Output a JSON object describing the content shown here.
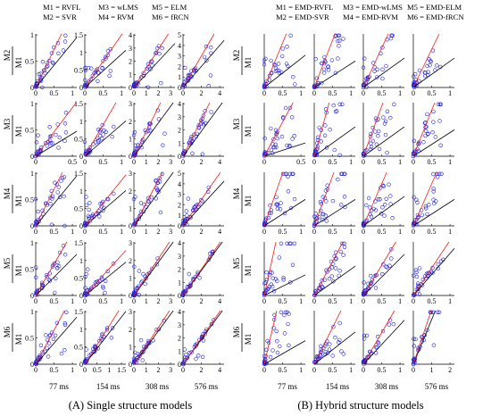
{
  "legend": {
    "single": [
      [
        "M1 = RVFL",
        "M3 = wLMS",
        "M5 = ELM"
      ],
      [
        "M2 = SVR",
        "M4 = RVM",
        "M6 = fRCN"
      ]
    ],
    "hybrid": [
      [
        "M1 = EMD-RVFL",
        "M3 = EMD-wLMS",
        "M5 = EMD-ELM"
      ],
      [
        "M2 = EMD-SVR",
        "M4 = EMD-RVM",
        "M6 = EMD-fRCN"
      ]
    ]
  },
  "row_labels": {
    "numerators": [
      "M2",
      "M3",
      "M4",
      "M5",
      "M6"
    ],
    "denominator": "M1"
  },
  "column_labels": [
    "77 ms",
    "154 ms",
    "308 ms",
    "576 ms"
  ],
  "captions": {
    "single": "(A) Single structure models",
    "hybrid": "(B) Hybrid structure models"
  },
  "colors": {
    "points": "#1f1fe0",
    "fit_line": "#ff1a1a",
    "reference_line": "#000000"
  },
  "chart_data": {
    "type": "scatter",
    "description_grid": "5 rows (M2..M6 vs M1) x 4 columns (77, 154, 308, 576 ms) for each of two model groups",
    "single": {
      "y_max": [
        [
          1,
          1.5,
          4,
          5
        ],
        [
          1,
          1.5,
          3,
          4
        ],
        [
          1,
          1.5,
          3,
          5
        ],
        [
          1,
          1.5,
          3,
          4
        ],
        [
          1,
          1.5,
          3,
          4
        ]
      ],
      "x_ticks": [
        [
          [
            0,
            0.5,
            1
          ],
          [
            0,
            0.5,
            1
          ],
          [
            0,
            1,
            2,
            3
          ],
          [
            0,
            2,
            4
          ]
        ],
        [
          [
            0,
            0.5
          ],
          [
            0,
            0.5,
            1
          ],
          [
            0,
            1,
            2,
            3
          ],
          [
            0,
            2,
            4
          ]
        ],
        [
          [
            0,
            0.5,
            1
          ],
          [
            0,
            0.5,
            1
          ],
          [
            0,
            1,
            2,
            3
          ],
          [
            0,
            2,
            4
          ]
        ],
        [
          [
            0,
            0.5,
            1
          ],
          [
            0,
            0.5,
            1
          ],
          [
            0,
            1,
            2,
            3
          ],
          [
            0,
            2,
            4
          ]
        ],
        [
          [
            0,
            0.5,
            1
          ],
          [
            0,
            0.5,
            1,
            1.5
          ],
          [
            0,
            1,
            2,
            3
          ],
          [
            0,
            2,
            4
          ]
        ]
      ],
      "y_ticks": [
        [
          [
            0,
            0.5,
            1
          ],
          [
            0,
            0.5,
            1,
            1.5
          ],
          [
            0,
            1,
            2,
            3,
            4
          ],
          [
            0,
            1,
            2,
            3,
            4,
            5
          ]
        ],
        [
          [
            0,
            0.5,
            1
          ],
          [
            0,
            0.5,
            1,
            1.5
          ],
          [
            0,
            1,
            2,
            3
          ],
          [
            0,
            1,
            2,
            3,
            4
          ]
        ],
        [
          [
            0,
            0.5,
            1
          ],
          [
            0,
            0.5,
            1,
            1.5
          ],
          [
            0,
            1,
            2,
            3
          ],
          [
            0,
            1,
            2,
            3,
            4,
            5
          ]
        ],
        [
          [
            0,
            0.5,
            1
          ],
          [
            0,
            0.5,
            1,
            1.5
          ],
          [
            0,
            1,
            2,
            3
          ],
          [
            0,
            1,
            2,
            3,
            4
          ]
        ],
        [
          [
            0,
            0.5,
            1
          ],
          [
            0,
            0.5,
            1,
            1.5
          ],
          [
            0,
            1,
            2,
            3
          ],
          [
            0,
            1,
            2,
            3,
            4
          ]
        ]
      ],
      "fit_slope": [
        [
          1.45,
          1.5,
          1.45,
          1.5
        ],
        [
          1.85,
          1.8,
          1.4,
          1.4
        ],
        [
          1.4,
          1.3,
          1.3,
          1.25
        ],
        [
          1.2,
          1.15,
          1.05,
          1.0
        ],
        [
          1.3,
          1.1,
          1.05,
          1.0
        ]
      ],
      "reference_slope": [
        [
          0.85,
          0.95,
          1.0,
          1.0
        ],
        [
          0.85,
          0.9,
          0.95,
          0.95
        ],
        [
          0.85,
          0.9,
          0.95,
          0.95
        ],
        [
          0.7,
          0.85,
          0.95,
          0.95
        ],
        [
          0.8,
          0.9,
          0.95,
          0.95
        ]
      ]
    },
    "hybrid": {
      "y_max": [
        [
          1,
          1,
          1,
          1
        ],
        [
          1,
          1,
          1,
          1
        ],
        [
          1,
          1,
          1,
          1
        ],
        [
          1,
          1,
          1,
          1
        ],
        [
          1,
          1,
          1,
          1
        ]
      ],
      "x_ticks": [
        [
          [
            0,
            0.5,
            1
          ],
          [
            0,
            0.5,
            1
          ],
          [
            0,
            0.5,
            1
          ],
          [
            0,
            0.5,
            1
          ]
        ],
        [
          [
            0,
            0.5
          ],
          [
            0,
            0.5,
            1
          ],
          [
            0,
            0.5,
            1
          ],
          [
            0,
            0.5,
            1
          ]
        ],
        [
          [
            0,
            0.5,
            1
          ],
          [
            0,
            0.5,
            1
          ],
          [
            0,
            0.5,
            1
          ],
          [
            0,
            0.5,
            1
          ]
        ],
        [
          [
            0,
            0.5,
            1
          ],
          [
            0,
            0.5,
            1
          ],
          [
            0,
            0.5,
            1
          ],
          [
            0,
            0.5,
            1
          ]
        ],
        [
          [
            0,
            0.5,
            1
          ],
          [
            0,
            0.5,
            1
          ],
          [
            0,
            0.5,
            1
          ],
          [
            0,
            1,
            2
          ]
        ]
      ],
      "y_ticks": [
        [
          [],
          [],
          [],
          []
        ],
        [
          [],
          [],
          [],
          []
        ],
        [
          [],
          [],
          [],
          []
        ],
        [
          [],
          [],
          [],
          []
        ],
        [
          [],
          [],
          [],
          []
        ]
      ],
      "fit_slope": [
        [
          1.7,
          1.8,
          1.5,
          1.45
        ],
        [
          2.6,
          2.5,
          1.9,
          1.75
        ],
        [
          2.0,
          1.9,
          1.6,
          1.6
        ],
        [
          3.2,
          1.3,
          1.15,
          1.05
        ],
        [
          3.0,
          1.4,
          1.2,
          1.05
        ]
      ],
      "reference_slope": [
        [
          0.55,
          0.45,
          0.5,
          0.5
        ],
        [
          0.45,
          0.5,
          0.5,
          0.45
        ],
        [
          0.45,
          0.45,
          0.5,
          0.45
        ],
        [
          0.35,
          0.5,
          0.7,
          0.8
        ],
        [
          0.4,
          0.55,
          0.75,
          0.85
        ]
      ]
    }
  }
}
